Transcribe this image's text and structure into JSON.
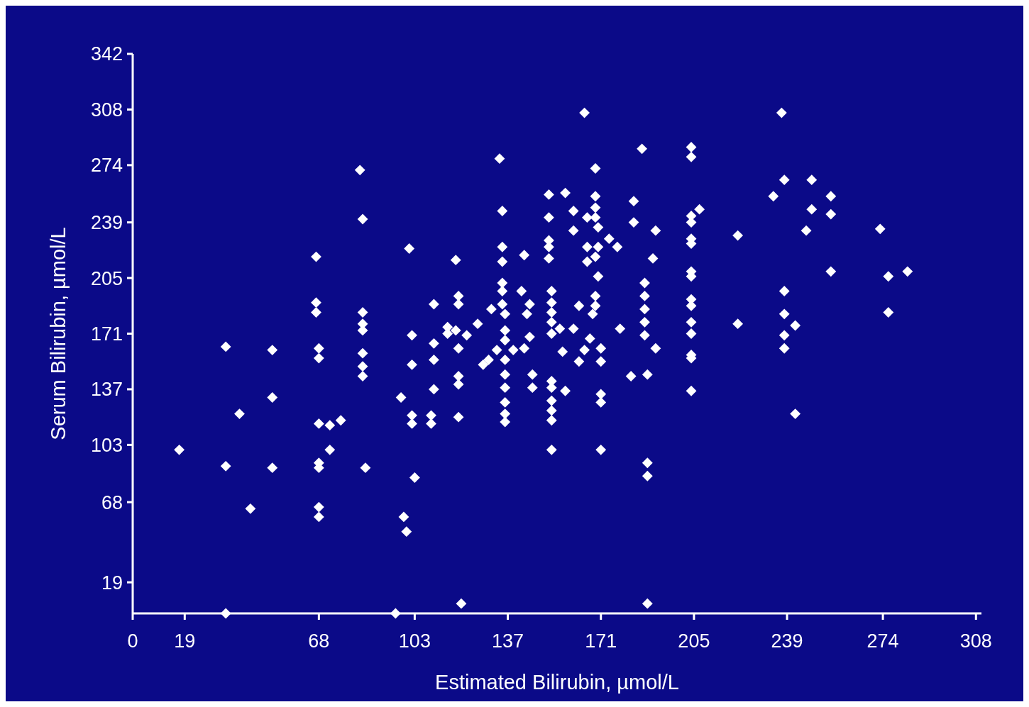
{
  "chart_data": {
    "type": "scatter",
    "xlabel": "Estimated Bilirubin, µmol/L",
    "ylabel": "Serum Bilirubin, µmol/L",
    "xlim": [
      0,
      310
    ],
    "ylim": [
      0,
      342
    ],
    "xticks": [
      0,
      19,
      68,
      103,
      137,
      171,
      205,
      239,
      274,
      308
    ],
    "yticks": [
      19,
      68,
      103,
      137,
      171,
      205,
      239,
      274,
      308,
      342
    ],
    "marker": "diamond",
    "series": [
      {
        "color": "#ffffff",
        "x": [
          17,
          34,
          34,
          39,
          43,
          51,
          51,
          51,
          67,
          67,
          67,
          68,
          68,
          68,
          72,
          76,
          72,
          68,
          68,
          68,
          68,
          83,
          84,
          84,
          84,
          84,
          84,
          84,
          84,
          85,
          101,
          102,
          102,
          98,
          102,
          102,
          103,
          99,
          100,
          110,
          110,
          110,
          110,
          109,
          109,
          34,
          96,
          120,
          118,
          119,
          119,
          119,
          119,
          119,
          115,
          118,
          122,
          126,
          119,
          115,
          165,
          134,
          186,
          169,
          152,
          158,
          161,
          169,
          169,
          183,
          135,
          152,
          183,
          191,
          166,
          169,
          161,
          170,
          174,
          177,
          166,
          170,
          169,
          166,
          152,
          152,
          152,
          135,
          135,
          143,
          190,
          170,
          135,
          135,
          135,
          131,
          136,
          142,
          145,
          144,
          153,
          153,
          153,
          153,
          153,
          156,
          163,
          169,
          169,
          168,
          161,
          178,
          187,
          187,
          187,
          187,
          187,
          191,
          136,
          136,
          133,
          139,
          145,
          143,
          128,
          130,
          136,
          157,
          167,
          165,
          163,
          171,
          171,
          136,
          136,
          136,
          136,
          136,
          146,
          146,
          153,
          153,
          153,
          153,
          153,
          158,
          171,
          171,
          182,
          188,
          153,
          171,
          188,
          188,
          188,
          237,
          204,
          204,
          204,
          204,
          207,
          204,
          204,
          221,
          204,
          204,
          204,
          204,
          204,
          204,
          204,
          204,
          204,
          221,
          234,
          238,
          248,
          255,
          248,
          255,
          246,
          273,
          255,
          276,
          283,
          276,
          238,
          238,
          242,
          238,
          238,
          242
        ],
        "values": [
          100,
          163,
          90,
          122,
          64,
          161,
          132,
          89,
          218,
          190,
          184,
          162,
          156,
          116,
          115,
          118,
          100,
          92,
          89,
          65,
          59,
          271,
          241,
          184,
          177,
          173,
          159,
          151,
          145,
          89,
          223,
          170,
          152,
          132,
          121,
          116,
          83,
          59,
          50,
          189,
          165,
          155,
          137,
          121,
          116,
          0,
          0,
          6,
          216,
          194,
          189,
          145,
          140,
          120,
          175,
          173,
          170,
          177,
          162,
          171,
          306,
          278,
          284,
          272,
          256,
          257,
          246,
          255,
          248,
          252,
          246,
          242,
          239,
          234,
          242,
          242,
          234,
          236,
          229,
          224,
          224,
          224,
          218,
          215,
          228,
          224,
          217,
          224,
          215,
          219,
          217,
          206,
          202,
          197,
          189,
          186,
          183,
          197,
          189,
          183,
          197,
          190,
          184,
          178,
          171,
          174,
          188,
          194,
          188,
          183,
          174,
          174,
          202,
          194,
          186,
          178,
          170,
          162,
          173,
          167,
          161,
          161,
          169,
          162,
          152,
          155,
          155,
          160,
          168,
          161,
          154,
          162,
          154,
          146,
          138,
          129,
          122,
          117,
          146,
          138,
          142,
          138,
          130,
          124,
          118,
          136,
          134,
          129,
          145,
          146,
          100,
          100,
          92,
          84,
          6,
          306,
          285,
          279,
          243,
          239,
          247,
          229,
          226,
          231,
          209,
          206,
          192,
          188,
          178,
          171,
          158,
          156,
          136,
          177,
          255,
          265,
          265,
          255,
          247,
          244,
          234,
          235,
          209,
          206,
          209,
          184,
          197,
          183,
          176,
          170,
          162,
          122
        ]
      }
    ]
  }
}
